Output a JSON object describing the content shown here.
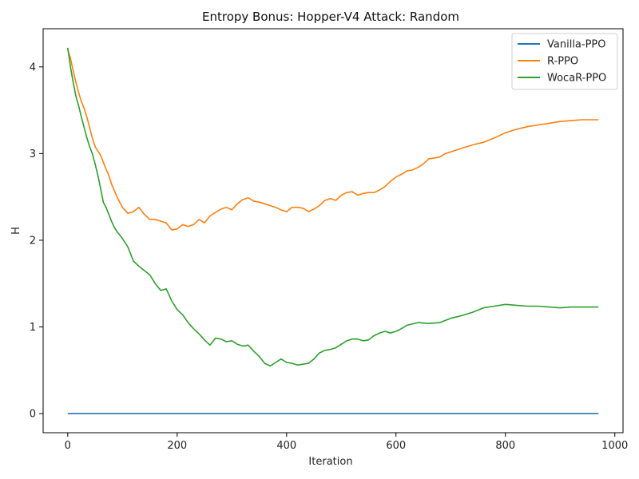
{
  "chart_data": {
    "type": "line",
    "title": "Entropy Bonus: Hopper-V4 Attack: Random",
    "xlabel": "Iteration",
    "ylabel": "H",
    "xlim": [
      -45,
      1015
    ],
    "ylim": [
      -0.22,
      4.44
    ],
    "xticks": [
      0,
      200,
      400,
      600,
      800,
      1000
    ],
    "yticks": [
      0,
      1,
      2,
      3,
      4
    ],
    "grid": false,
    "legend_position": "top-right",
    "series": [
      {
        "name": "Vanilla-PPO",
        "color": "#1f77b4",
        "x": [
          0,
          970
        ],
        "y": [
          0,
          0
        ]
      },
      {
        "name": "R-PPO",
        "color": "#ff7f0e",
        "x": [
          0,
          5,
          10,
          15,
          20,
          25,
          30,
          35,
          40,
          45,
          50,
          55,
          60,
          65,
          70,
          75,
          80,
          90,
          100,
          110,
          120,
          130,
          140,
          150,
          160,
          170,
          180,
          190,
          200,
          210,
          220,
          230,
          240,
          250,
          260,
          270,
          280,
          290,
          300,
          310,
          320,
          330,
          340,
          350,
          360,
          370,
          380,
          390,
          400,
          410,
          420,
          430,
          440,
          450,
          460,
          470,
          480,
          490,
          500,
          510,
          520,
          530,
          540,
          550,
          560,
          570,
          580,
          590,
          600,
          610,
          620,
          630,
          640,
          650,
          660,
          670,
          680,
          690,
          700,
          710,
          720,
          740,
          760,
          780,
          800,
          820,
          840,
          860,
          880,
          900,
          920,
          940,
          960,
          970
        ],
        "y": [
          4.2,
          4.1,
          3.95,
          3.82,
          3.7,
          3.6,
          3.52,
          3.42,
          3.3,
          3.18,
          3.08,
          3.03,
          2.98,
          2.9,
          2.82,
          2.75,
          2.65,
          2.5,
          2.38,
          2.31,
          2.33,
          2.38,
          2.3,
          2.24,
          2.24,
          2.22,
          2.2,
          2.12,
          2.13,
          2.18,
          2.16,
          2.18,
          2.24,
          2.2,
          2.28,
          2.32,
          2.36,
          2.38,
          2.35,
          2.42,
          2.47,
          2.49,
          2.45,
          2.44,
          2.42,
          2.4,
          2.38,
          2.35,
          2.33,
          2.38,
          2.38,
          2.37,
          2.33,
          2.36,
          2.4,
          2.46,
          2.48,
          2.46,
          2.52,
          2.55,
          2.56,
          2.52,
          2.54,
          2.55,
          2.55,
          2.58,
          2.62,
          2.68,
          2.73,
          2.76,
          2.8,
          2.81,
          2.84,
          2.88,
          2.94,
          2.95,
          2.96,
          3.0,
          3.02,
          3.04,
          3.06,
          3.1,
          3.13,
          3.18,
          3.24,
          3.28,
          3.31,
          3.33,
          3.35,
          3.37,
          3.38,
          3.39,
          3.39,
          3.39
        ]
      },
      {
        "name": "WocaR-PPO",
        "color": "#2ca02c",
        "x": [
          0,
          5,
          10,
          15,
          20,
          25,
          30,
          35,
          40,
          45,
          50,
          55,
          60,
          65,
          70,
          75,
          80,
          85,
          90,
          95,
          100,
          110,
          120,
          130,
          140,
          150,
          160,
          170,
          180,
          190,
          200,
          210,
          220,
          230,
          240,
          250,
          260,
          270,
          280,
          290,
          300,
          310,
          320,
          330,
          340,
          350,
          360,
          370,
          380,
          390,
          400,
          410,
          420,
          430,
          440,
          450,
          460,
          470,
          480,
          490,
          500,
          510,
          520,
          530,
          540,
          550,
          560,
          570,
          580,
          590,
          600,
          610,
          620,
          640,
          660,
          680,
          700,
          720,
          740,
          760,
          780,
          800,
          820,
          840,
          860,
          880,
          900,
          920,
          940,
          960,
          970
        ],
        "y": [
          4.22,
          4.0,
          3.82,
          3.66,
          3.55,
          3.42,
          3.3,
          3.18,
          3.08,
          3.0,
          2.88,
          2.75,
          2.6,
          2.44,
          2.38,
          2.3,
          2.22,
          2.15,
          2.1,
          2.06,
          2.02,
          1.92,
          1.76,
          1.7,
          1.65,
          1.6,
          1.5,
          1.42,
          1.44,
          1.3,
          1.2,
          1.14,
          1.05,
          0.98,
          0.92,
          0.85,
          0.79,
          0.87,
          0.86,
          0.83,
          0.84,
          0.8,
          0.78,
          0.79,
          0.72,
          0.66,
          0.58,
          0.55,
          0.59,
          0.63,
          0.59,
          0.58,
          0.56,
          0.57,
          0.58,
          0.63,
          0.7,
          0.73,
          0.74,
          0.76,
          0.8,
          0.84,
          0.86,
          0.86,
          0.84,
          0.85,
          0.9,
          0.93,
          0.95,
          0.93,
          0.95,
          0.98,
          1.02,
          1.05,
          1.04,
          1.05,
          1.1,
          1.13,
          1.17,
          1.22,
          1.24,
          1.26,
          1.25,
          1.24,
          1.24,
          1.23,
          1.22,
          1.23,
          1.23,
          1.23,
          1.23
        ]
      }
    ]
  }
}
